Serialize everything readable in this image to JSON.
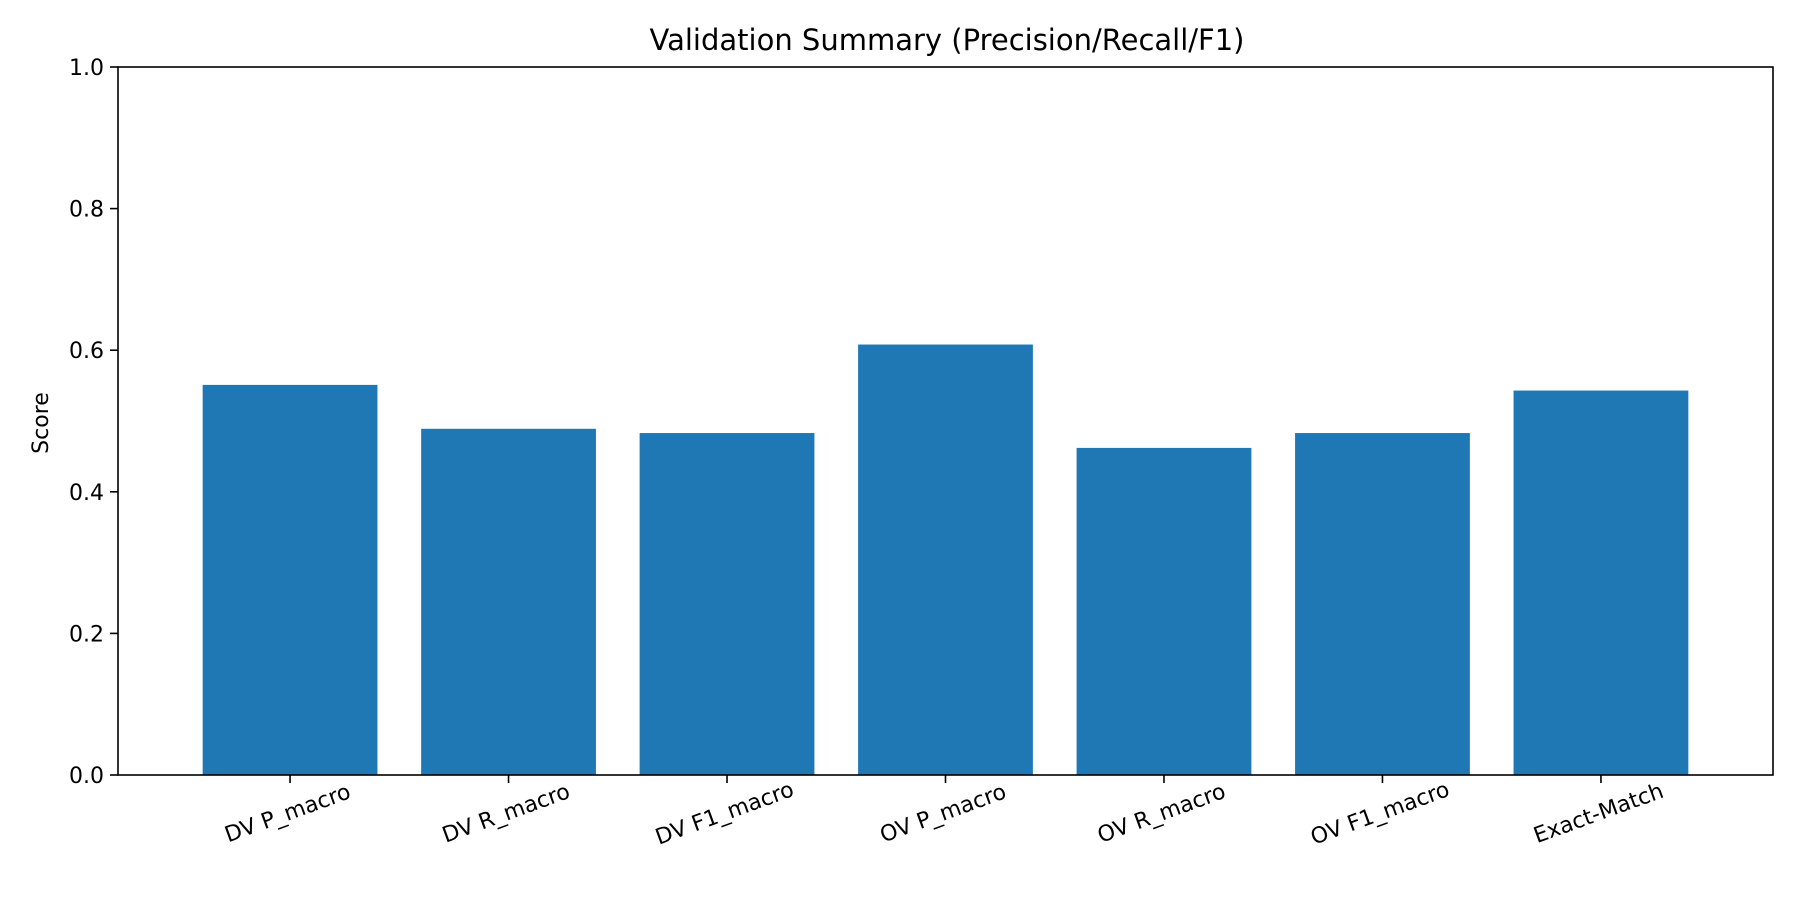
{
  "chart_data": {
    "type": "bar",
    "title": "Validation Summary (Precision/Recall/F1)",
    "xlabel": "",
    "ylabel": "Score",
    "categories": [
      "DV P_macro",
      "DV R_macro",
      "DV F1_macro",
      "OV P_macro",
      "OV R_macro",
      "OV F1_macro",
      "Exact-Match"
    ],
    "values": [
      0.551,
      0.489,
      0.483,
      0.608,
      0.462,
      0.483,
      0.543
    ],
    "ylim": [
      0,
      1.0
    ],
    "yticks": [
      "0.0",
      "0.2",
      "0.4",
      "0.6",
      "0.8",
      "1.0"
    ],
    "grid": false,
    "legend": "none",
    "bar_color": "#1f77b4"
  }
}
